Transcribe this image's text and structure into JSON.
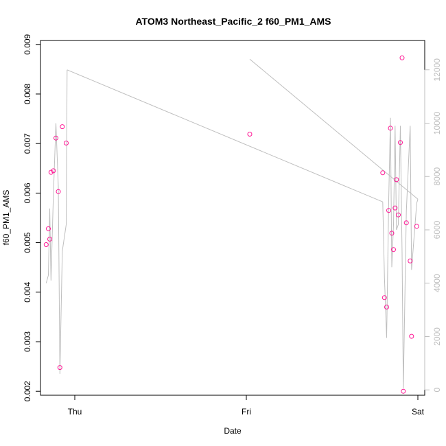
{
  "chart_data": {
    "type": "scatter",
    "title": "ATOM3 Northeast_Pacific_2 f60_PM1_AMS",
    "xlabel": "Date",
    "ylabel": "f60_PM1_AMS",
    "x_ticks": [
      {
        "day": 0,
        "label": "Thu"
      },
      {
        "day": 1,
        "label": "Fri"
      },
      {
        "day": 2,
        "label": "Sat"
      }
    ],
    "xlim_days": [
      -0.2,
      2.04
    ],
    "ylim": [
      0.00192,
      0.00908
    ],
    "y_ticks": [
      "0.002",
      "0.003",
      "0.004",
      "0.005",
      "0.006",
      "0.007",
      "0.008",
      "0.009"
    ],
    "y2lim": [
      -200,
      13100
    ],
    "y2_ticks": [
      "0",
      "2000",
      "4000",
      "6000",
      "8000",
      "10000",
      "12000"
    ],
    "series": [
      {
        "color": "#ff1493",
        "marker": "open-circle",
        "x_days": [
          -0.167,
          -0.154,
          -0.146,
          -0.139,
          -0.125,
          -0.11,
          -0.096,
          -0.087,
          -0.073,
          -0.05,
          1.02,
          1.795,
          1.805,
          1.818,
          1.83,
          1.84,
          1.848,
          1.858,
          1.867,
          1.875,
          1.886,
          1.898,
          1.908,
          1.915,
          1.933,
          1.955,
          1.963,
          1.993
        ],
        "values": [
          0.00496,
          0.00528,
          0.00507,
          0.00642,
          0.00645,
          0.00711,
          0.00603,
          0.00248,
          0.00734,
          0.00701,
          0.00719,
          0.00641,
          0.00389,
          0.0037,
          0.00565,
          0.00731,
          0.00519,
          0.00486,
          0.0057,
          0.00627,
          0.00556,
          0.00702,
          0.00873,
          0.002,
          0.0054,
          0.00463,
          0.00311,
          0.00533
        ]
      },
      {
        "color": "#bebebe",
        "marker": "line",
        "axis": "right",
        "segments": [
          {
            "x_days": [
              -0.167,
              -0.154,
              -0.146,
              -0.139,
              -0.125,
              -0.11,
              -0.096,
              -0.087,
              -0.073,
              -0.05,
              -0.045
            ],
            "values": [
              4000,
              4300,
              6800,
              4100,
              7300,
              10000,
              7600,
              600,
              5200,
              6200,
              12000
            ]
          },
          {
            "x_days": [
              -0.045,
              1.795
            ],
            "values": [
              12000,
              7050
            ]
          },
          {
            "x_days": [
              1.795,
              1.805,
              1.818,
              1.83,
              1.84,
              1.848,
              1.858,
              1.867,
              1.875,
              1.886,
              1.898,
              1.908,
              1.915,
              1.933,
              1.955,
              1.963,
              1.993,
              2.0
            ],
            "values": [
              7050,
              4200,
              1950,
              7100,
              10200,
              4600,
              6200,
              9900,
              6000,
              6200,
              9900,
              5100,
              50,
              6700,
              9900,
              4500,
              7000,
              7150
            ]
          },
          {
            "x_days": [
              1.02,
              2.0
            ],
            "values": [
              12400,
              7150
            ]
          }
        ]
      }
    ]
  }
}
